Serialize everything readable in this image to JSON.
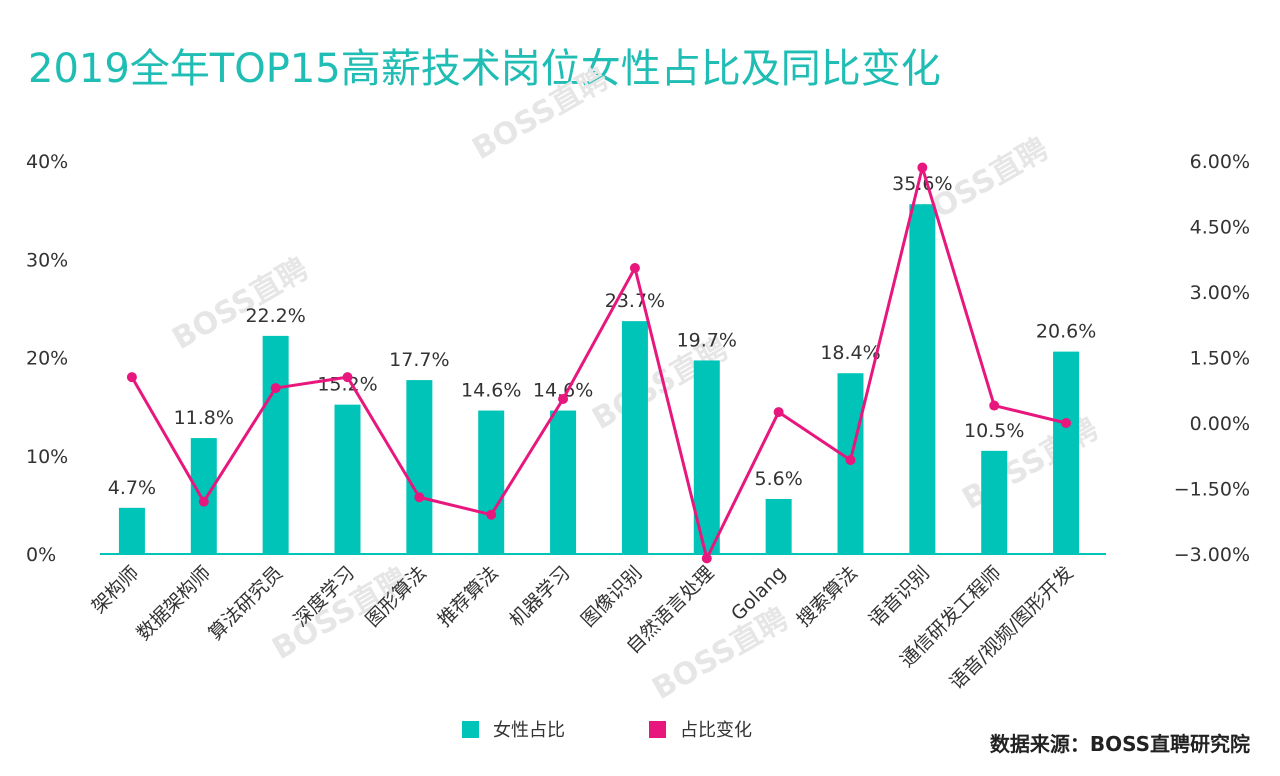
{
  "title": "2019全年TOP15高薪技术岗位女性占比及同比变化",
  "watermark": "BOSS直聘",
  "source": "数据来源：BOSS直聘研究院",
  "colors": {
    "bar": "#00c4b8",
    "line": "#e8177e",
    "title": "#1fbdb4",
    "axis": "#00c4b8"
  },
  "legend": [
    {
      "label": "女性占比",
      "color": "#00c4b8",
      "icon": "square"
    },
    {
      "label": "占比变化",
      "color": "#e8177e",
      "icon": "square"
    }
  ],
  "chart_data": {
    "type": "bar+line",
    "title": "2019全年TOP15高薪技术岗位女性占比及同比变化",
    "categories": [
      "架构师",
      "数据架构师",
      "算法研究员",
      "深度学习",
      "图形算法",
      "推荐算法",
      "机器学习",
      "图像识别",
      "自然语言处理",
      "Golang",
      "搜索算法",
      "语音识别",
      "通信研发工程师",
      "语音/视频/图形开发"
    ],
    "series": [
      {
        "name": "女性占比",
        "type": "bar",
        "axis": "left",
        "unit": "%",
        "values": [
          4.7,
          11.8,
          22.2,
          15.2,
          17.7,
          14.6,
          14.6,
          23.7,
          19.7,
          5.6,
          18.4,
          35.6,
          10.5,
          20.6
        ],
        "labels": [
          "4.7%",
          "11.8%",
          "22.2%",
          "15.2%",
          "17.7%",
          "14.6%",
          "14.6%",
          "23.7%",
          "19.7%",
          "5.6%",
          "18.4%",
          "35.6%",
          "10.5%",
          "20.6%"
        ]
      },
      {
        "name": "占比变化",
        "type": "line",
        "axis": "right",
        "unit": "%",
        "values": [
          1.05,
          -1.8,
          0.8,
          1.05,
          -1.7,
          -2.1,
          0.55,
          3.55,
          -3.1,
          0.25,
          -0.85,
          5.85,
          0.4,
          0.0
        ]
      }
    ],
    "y_left": {
      "ylim": [
        0,
        40
      ],
      "ticks": [
        0,
        10,
        20,
        30,
        40
      ],
      "tick_labels": [
        "0%",
        "10%",
        "20%",
        "30%",
        "40%"
      ]
    },
    "y_right": {
      "ylim": [
        -3,
        6
      ],
      "ticks": [
        -3,
        -1.5,
        0,
        1.5,
        3,
        4.5,
        6
      ],
      "tick_labels": [
        "−3.00%",
        "−1.50%",
        "0.00%",
        "1.50%",
        "3.00%",
        "4.50%",
        "6.00%"
      ]
    },
    "grid": false,
    "legend_position": "bottom-center"
  }
}
